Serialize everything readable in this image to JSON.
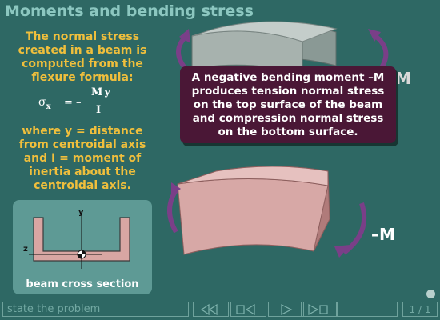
{
  "title": "Moments and bending stress",
  "left_panel": {
    "intro_text": "The normal stress created in a beam is computed from the flexure formula:",
    "formula": {
      "lhs": "σ",
      "lhs_sub": "x",
      "equals": "= –",
      "numerator": "My",
      "denominator": "I"
    },
    "where_text": "where y = distance from centroidal axis and I = moment of inertia about the centroidal axis."
  },
  "cross_section": {
    "y_label": "y",
    "z_label": "z",
    "caption": "beam cross section"
  },
  "callout": {
    "text": "A negative bending moment –M produces tension normal stress on the top surface of the beam and compression normal stress on the bottom surface."
  },
  "moment_labels": {
    "top": "M",
    "bottom": "–M"
  },
  "bottom_bar": {
    "problem_label": "state the problem",
    "page_indicator": "1 / 1"
  },
  "colors": {
    "background": "#2e6864",
    "title": "#8cc7c0",
    "highlight_text": "#f0bf3c",
    "callout_bg": "#4a1736",
    "beam": "#cfa1a0",
    "arrow": "#7a3f88"
  },
  "icons": {
    "first": "first-page-icon",
    "prev": "previous-page-icon",
    "play": "play-icon",
    "last": "last-page-icon"
  }
}
